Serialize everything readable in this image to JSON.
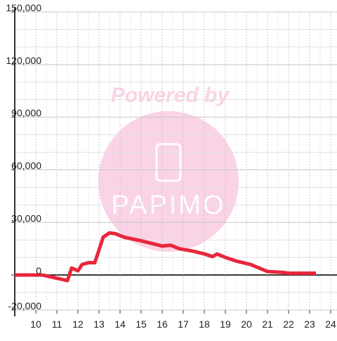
{
  "chart_data": {
    "type": "line",
    "watermark": {
      "top": "Powered by",
      "bottom": "PAPIMO"
    },
    "x": [
      9,
      10,
      10.3,
      11.5,
      11.7,
      12,
      12.2,
      12.5,
      12.8,
      13.2,
      13.5,
      13.8,
      14.2,
      15,
      15.5,
      16,
      16.4,
      16.8,
      17.5,
      18,
      18.4,
      18.6,
      19,
      19.5,
      20.2,
      20.5,
      21,
      21.7,
      22,
      23.3
    ],
    "series": [
      {
        "color": "#e8263b",
        "values": [
          0,
          0,
          0,
          -3200,
          4000,
          2400,
          6000,
          7000,
          7000,
          21600,
          24000,
          23500,
          21500,
          19500,
          18000,
          16500,
          17000,
          15000,
          13500,
          12000,
          10500,
          12000,
          10000,
          8000,
          6000,
          4500,
          2000,
          1500,
          1000,
          1000
        ]
      }
    ],
    "xlim": [
      9,
      24.3
    ],
    "xticks": [
      10,
      11,
      12,
      13,
      14,
      15,
      16,
      17,
      18,
      19,
      20,
      21,
      22,
      23,
      24
    ],
    "ylim": [
      -20000,
      150000
    ],
    "yticks": [
      {
        "value": -20000,
        "label": "-20,000"
      },
      0,
      {
        "value": 30000,
        "label": "30,000"
      },
      {
        "value": 60000,
        "label": "60,000"
      },
      {
        "value": 90000,
        "label": "90,000"
      },
      {
        "value": 120000,
        "label": "120,000"
      },
      {
        "value": 150000,
        "label": "150,000"
      }
    ],
    "y_minor_grid": [
      -10000,
      10000,
      20000,
      40000,
      50000,
      70000,
      80000,
      100000,
      110000,
      130000,
      140000
    ],
    "x_minor_grid": [
      9.5,
      10.5,
      11.5,
      12.5,
      13.5,
      14.5,
      15.5,
      16.5,
      17.5,
      18.5,
      19.5,
      20.5,
      21.5,
      22.5,
      23.5
    ],
    "grid": true
  }
}
